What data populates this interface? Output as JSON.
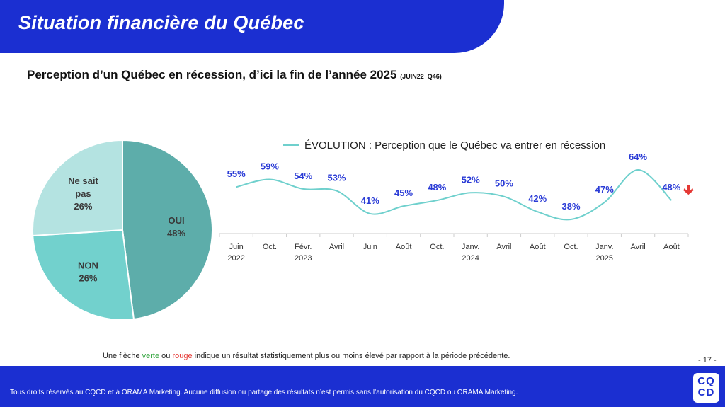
{
  "header": {
    "title": "Situation financière du Québec"
  },
  "subtitle": {
    "text": "Perception d’un Québec en récession, d’ici la fin de l’année 2025",
    "code": "(JUIN22_Q46)"
  },
  "footnote": {
    "part1": "Une flèche ",
    "green_word": "verte",
    "part2": " ou ",
    "red_word": "rouge",
    "part3": " indique un résultat statistiquement plus ou moins élevé par rapport à la période précédente."
  },
  "page_number": "- 17 -",
  "footer": {
    "text": "Tous droits réservés au CQCD et à ORAMA Marketing. Aucune diffusion ou partage des résultats n’est permis sans l’autorisation du CQCD ou ORAMA Marketing.",
    "logo_line1": "CQ",
    "logo_line2": "CD"
  },
  "colors": {
    "brand_blue": "#1b2fd1",
    "line": "#6fd0cd",
    "label_blue": "#2a3bd6",
    "arrow_red": "#e53935"
  },
  "chart_data": [
    {
      "type": "pie",
      "title": "",
      "slices": [
        {
          "label": "OUI",
          "value": 48,
          "display": "48%",
          "color": "#5dadaa"
        },
        {
          "label": "NON",
          "value": 26,
          "display": "26%",
          "color": "#72d1cd"
        },
        {
          "label": "Ne sait pas",
          "value": 26,
          "display": "26%",
          "color": "#b4e3e1"
        }
      ]
    },
    {
      "type": "line",
      "legend": "ÉVOLUTION : Perception que le Québec va entrer en récession",
      "legend_position": "top",
      "categories": [
        [
          "Juin",
          "2022"
        ],
        [
          "Oct.",
          ""
        ],
        [
          "Févr.",
          "2023"
        ],
        [
          "Avril",
          ""
        ],
        [
          "Juin",
          ""
        ],
        [
          "Août",
          ""
        ],
        [
          "Oct.",
          ""
        ],
        [
          "Janv.",
          "2024"
        ],
        [
          "Avril",
          ""
        ],
        [
          "Août",
          ""
        ],
        [
          "Oct.",
          ""
        ],
        [
          "Janv.",
          "2025"
        ],
        [
          "Avril",
          ""
        ],
        [
          "Août",
          ""
        ]
      ],
      "series": [
        {
          "name": "Perception que le Québec va entrer en récession",
          "values": [
            55,
            59,
            54,
            53,
            41,
            45,
            48,
            52,
            50,
            42,
            38,
            47,
            64,
            48
          ],
          "unit": "%"
        }
      ],
      "last_point_indicator": "down-arrow-red",
      "grid": false
    }
  ]
}
